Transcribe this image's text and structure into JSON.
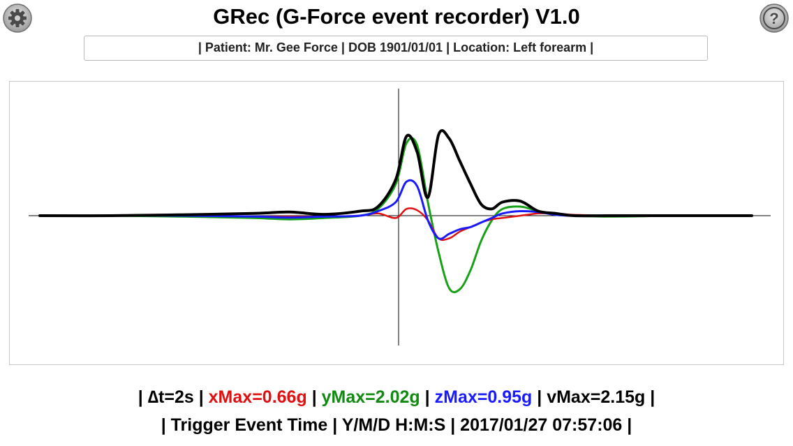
{
  "header": {
    "title": "GRec (G-Force event recorder) V1.0",
    "settings_icon": "gear-icon",
    "help_icon": "question-mark-icon"
  },
  "patient_info": "| Patient: Mr. Gee Force | DOB 1901/01/01 | Location: Left forearm |",
  "stats": {
    "sep": "|",
    "dt": "∆t=2s",
    "xmax": "xMax=0.66g",
    "ymax": "yMax=2.02g",
    "zmax": "zMax=0.95g",
    "vmax": "vMax=2.15g"
  },
  "trigger": {
    "label": "| Trigger Event Time | Y/M/D H:M:S | 2017/01/27 07:57:06 |"
  },
  "colors": {
    "x": "#e01010",
    "y": "#18a018",
    "z": "#1a1aff",
    "v": "#000000"
  },
  "chart_data": {
    "type": "line",
    "title": "",
    "xlabel": "",
    "ylabel": "",
    "x": [
      -1.0,
      -0.8,
      -0.6,
      -0.4,
      -0.3,
      -0.2,
      -0.1,
      -0.05,
      0.0,
      0.03,
      0.06,
      0.09,
      0.12,
      0.15,
      0.18,
      0.21,
      0.24,
      0.27,
      0.3,
      0.35,
      0.4,
      0.45,
      0.5,
      0.6,
      0.8,
      1.0
    ],
    "xlim": [
      -1.0,
      1.0
    ],
    "ylim": [
      -3.0,
      2.8
    ],
    "grid": false,
    "series": [
      {
        "key": "x",
        "values": [
          0.0,
          0.0,
          0.0,
          -0.02,
          -0.02,
          -0.02,
          0.0,
          0.05,
          -0.05,
          0.15,
          0.12,
          -0.1,
          -0.5,
          -0.5,
          -0.35,
          -0.25,
          -0.15,
          -0.08,
          -0.05,
          0.0,
          0.05,
          0.05,
          0.02,
          0.0,
          0.0,
          0.0
        ]
      },
      {
        "key": "y",
        "values": [
          0.0,
          0.0,
          -0.02,
          -0.05,
          -0.08,
          -0.05,
          0.0,
          0.15,
          0.7,
          1.6,
          1.55,
          0.3,
          -0.8,
          -1.6,
          -1.62,
          -1.2,
          -0.55,
          -0.1,
          0.15,
          0.2,
          0.1,
          0.02,
          0.0,
          -0.02,
          0.0,
          0.0
        ]
      },
      {
        "key": "z",
        "values": [
          0.0,
          0.0,
          0.0,
          -0.02,
          -0.04,
          -0.02,
          0.0,
          0.1,
          0.3,
          0.75,
          0.65,
          -0.1,
          -0.5,
          -0.4,
          -0.3,
          -0.25,
          -0.15,
          -0.05,
          0.05,
          0.1,
          0.08,
          0.02,
          0.0,
          0.0,
          0.0,
          0.0
        ]
      },
      {
        "key": "v",
        "values": [
          0.0,
          0.0,
          0.02,
          0.05,
          0.08,
          0.03,
          0.1,
          0.2,
          0.8,
          1.75,
          1.4,
          0.4,
          1.78,
          1.7,
          1.2,
          0.7,
          0.25,
          0.15,
          0.3,
          0.32,
          0.1,
          0.05,
          0.0,
          0.0,
          0.0,
          0.0
        ]
      }
    ]
  }
}
